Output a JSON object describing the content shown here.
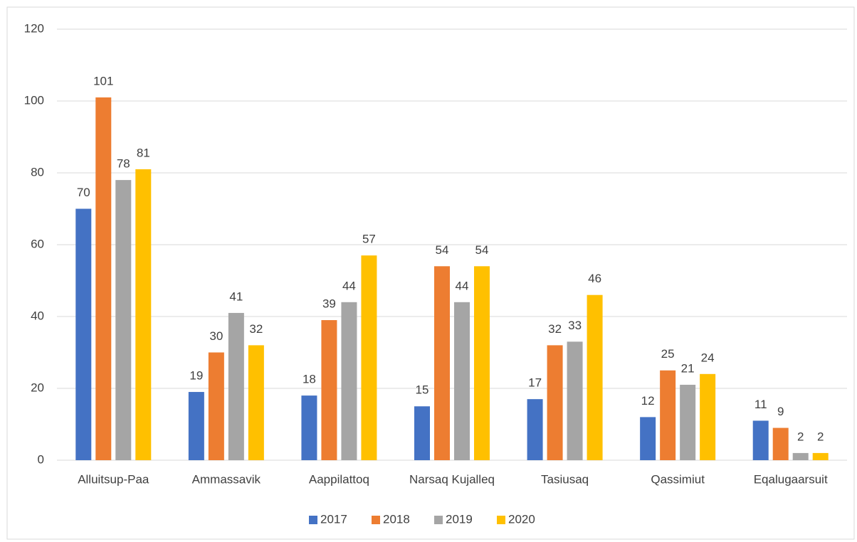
{
  "chart_data": {
    "type": "bar",
    "categories": [
      "Alluitsup-Paa",
      "Ammassavik",
      "Aappilattoq",
      "Narsaq Kujalleq",
      "Tasiusaq",
      "Qassimiut",
      "Eqalugaarsuit"
    ],
    "series": [
      {
        "name": "2017",
        "color": "#4472c4",
        "values": [
          70,
          19,
          18,
          15,
          17,
          12,
          11
        ]
      },
      {
        "name": "2018",
        "color": "#ed7d31",
        "values": [
          101,
          30,
          39,
          54,
          32,
          25,
          9
        ]
      },
      {
        "name": "2019",
        "color": "#a5a5a5",
        "values": [
          78,
          41,
          44,
          44,
          33,
          21,
          2
        ]
      },
      {
        "name": "2020",
        "color": "#ffc000",
        "values": [
          81,
          32,
          57,
          54,
          46,
          24,
          2
        ]
      }
    ],
    "ylim": [
      0,
      120
    ],
    "yticks": [
      0,
      20,
      40,
      60,
      80,
      100,
      120
    ],
    "grid": true,
    "legend": "bottom"
  }
}
